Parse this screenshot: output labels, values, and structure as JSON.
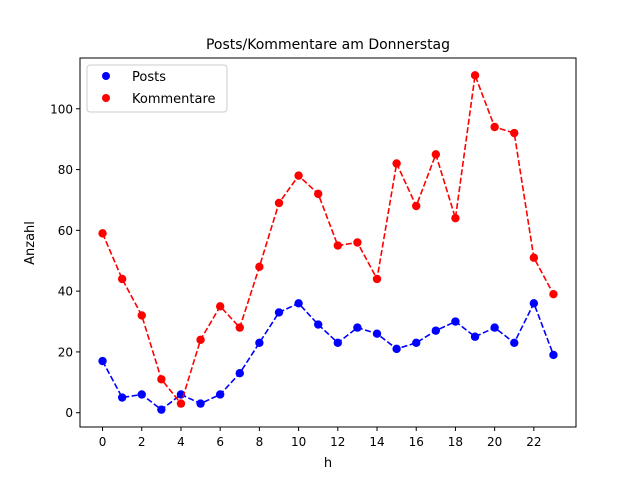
{
  "chart_data": {
    "type": "line",
    "title": "Posts/Kommentare am Donnerstag",
    "xlabel": "h",
    "ylabel": "Anzahl",
    "x": [
      0,
      1,
      2,
      3,
      4,
      5,
      6,
      7,
      8,
      9,
      10,
      11,
      12,
      13,
      14,
      15,
      16,
      17,
      18,
      19,
      20,
      21,
      22,
      23
    ],
    "xlim": [
      -1.15,
      24.15
    ],
    "ylim": [
      -4.7,
      116.7
    ],
    "xticks": [
      "0",
      "2",
      "4",
      "6",
      "8",
      "10",
      "12",
      "14",
      "16",
      "18",
      "20",
      "22"
    ],
    "yticks": [
      "0",
      "20",
      "40",
      "60",
      "80",
      "100"
    ],
    "grid": false,
    "legend_position": "top-left",
    "series": [
      {
        "name": "Posts",
        "color": "#0000ff",
        "linestyle": "dashed",
        "marker": "circle",
        "values": [
          17,
          5,
          6,
          1,
          6,
          3,
          6,
          13,
          23,
          33,
          36,
          29,
          23,
          28,
          26,
          21,
          23,
          27,
          30,
          25,
          28,
          23,
          36,
          19
        ]
      },
      {
        "name": "Kommentare",
        "color": "#ff0000",
        "linestyle": "dashed",
        "marker": "circle",
        "values": [
          59,
          44,
          32,
          11,
          3,
          24,
          35,
          28,
          48,
          69,
          78,
          72,
          55,
          56,
          44,
          82,
          68,
          85,
          64,
          111,
          94,
          92,
          51,
          39
        ]
      }
    ]
  }
}
